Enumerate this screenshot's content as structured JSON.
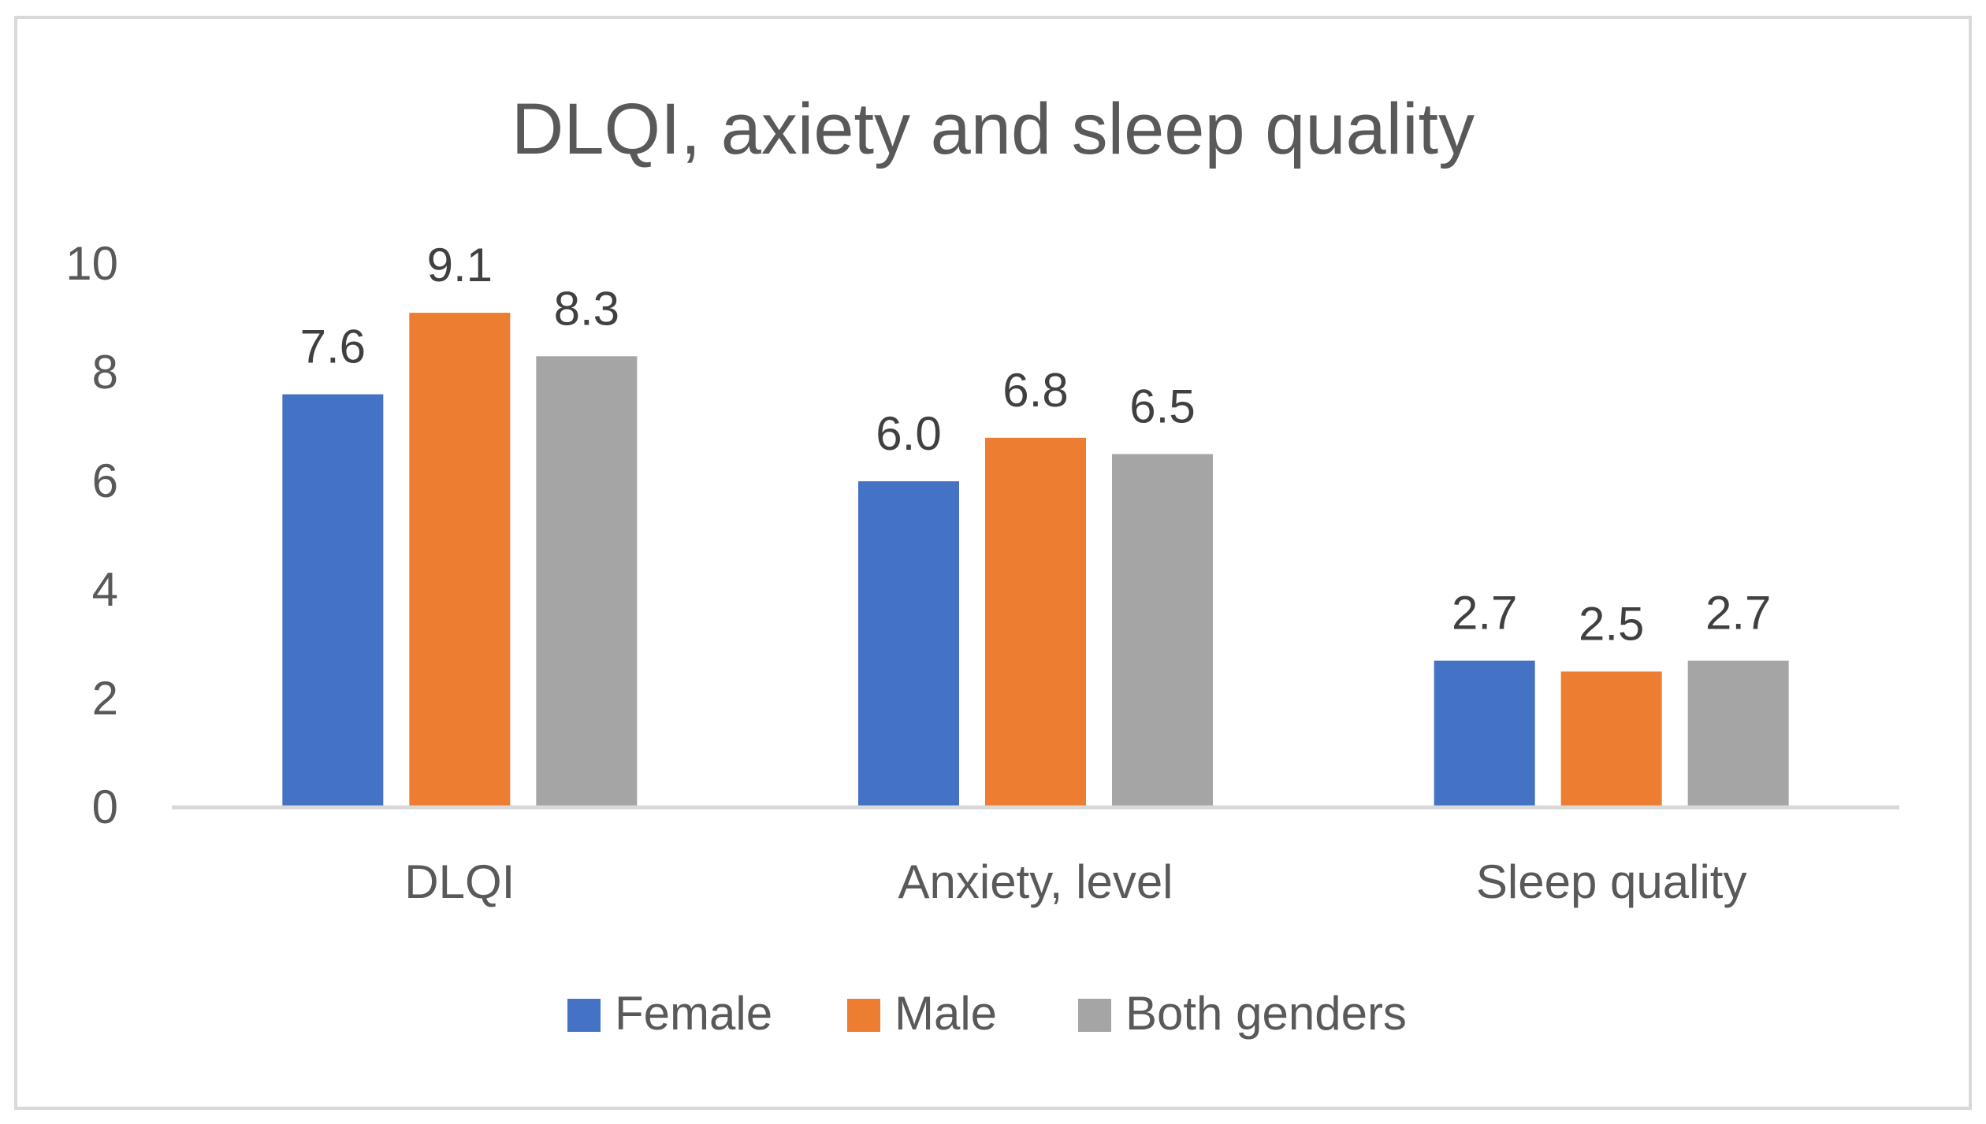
{
  "chart_data": {
    "type": "bar",
    "title": "DLQI, axiety and sleep quality",
    "categories": [
      "DLQI",
      "Anxiety, level",
      "Sleep quality"
    ],
    "series": [
      {
        "name": "Female",
        "values": [
          7.6,
          6.0,
          2.7
        ],
        "labels": [
          "7.6",
          "6.0",
          "2.7"
        ],
        "color": "#4472c4"
      },
      {
        "name": "Male",
        "values": [
          9.1,
          6.8,
          2.5
        ],
        "labels": [
          "9.1",
          "6.8",
          "2.5"
        ],
        "color": "#ed7d31"
      },
      {
        "name": "Both genders",
        "values": [
          8.3,
          6.5,
          2.7
        ],
        "labels": [
          "8.3",
          "6.5",
          "2.7"
        ],
        "color": "#a5a5a5"
      }
    ],
    "y_ticks": [
      "0",
      "2",
      "4",
      "6",
      "8",
      "10"
    ],
    "ylim": [
      0,
      10
    ],
    "grid": false,
    "legend_position": "bottom"
  }
}
